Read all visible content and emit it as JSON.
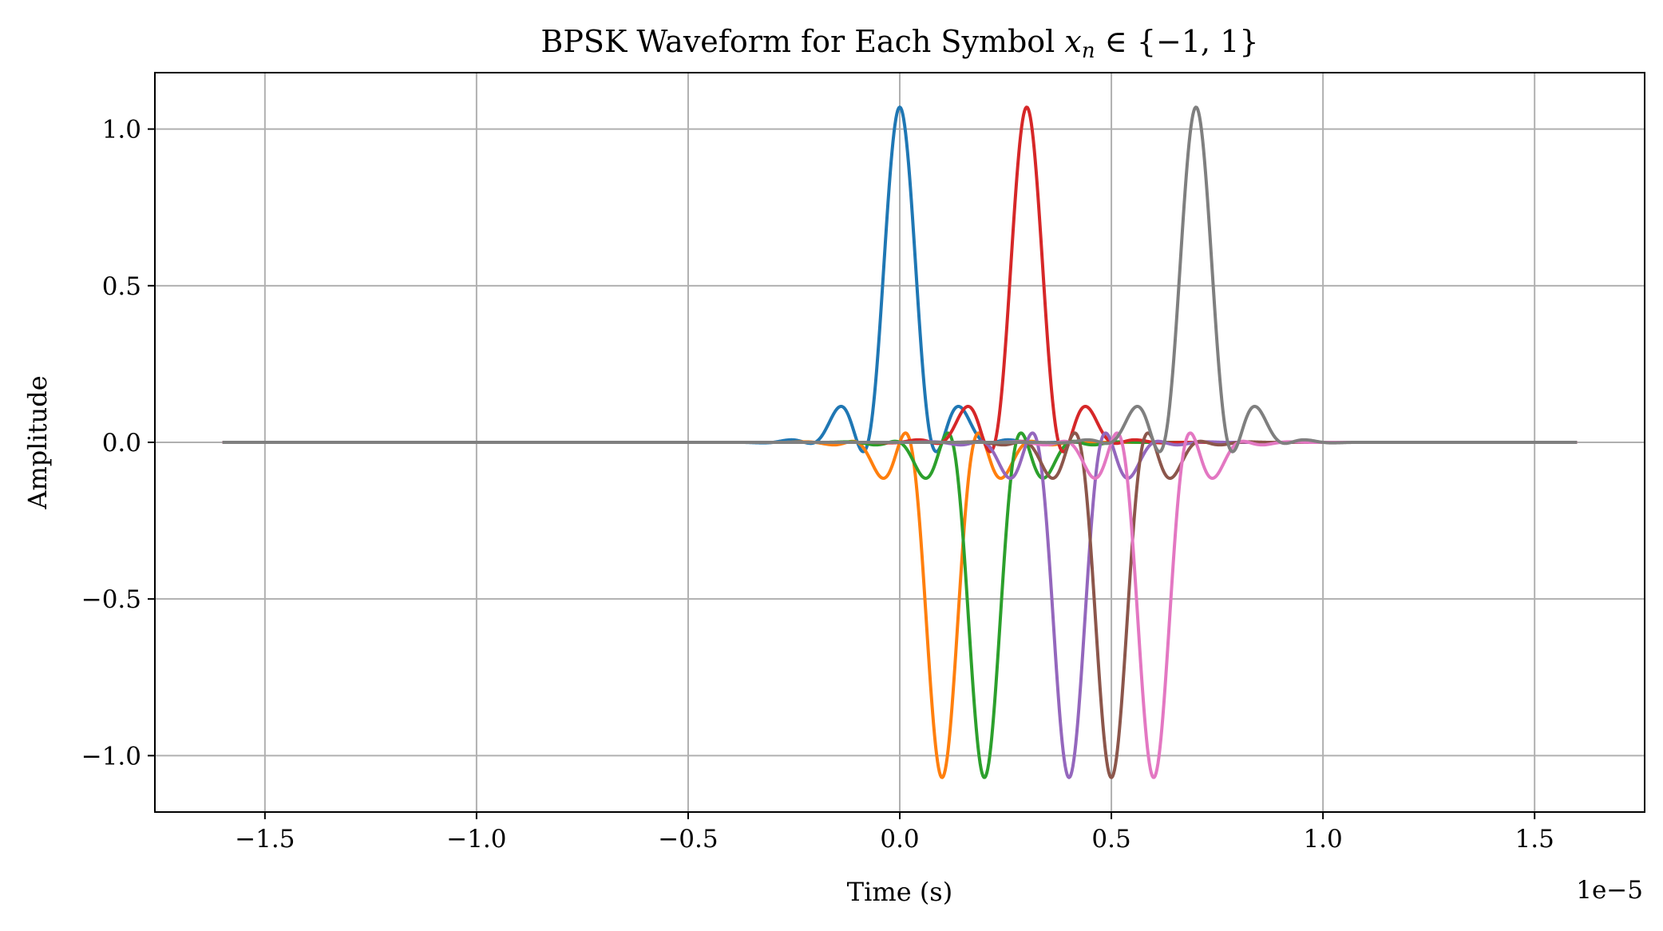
{
  "chart_data": {
    "type": "line",
    "title_parts": {
      "prefix": "BPSK Waveform for Each Symbol ",
      "var": "x",
      "sub": "n",
      "suffix": " ∈ {−1, 1}"
    },
    "xlabel": "Time (s)",
    "ylabel": "Amplitude",
    "x_offset_text": "1e−5",
    "x_unit_scale": 1e-05,
    "xlim": [
      -1.76,
      1.76
    ],
    "ylim": [
      -1.18,
      1.18
    ],
    "xticks": [
      -1.5,
      -1.0,
      -0.5,
      0.0,
      0.5,
      1.0,
      1.5
    ],
    "xtick_labels": [
      "−1.5",
      "−1.0",
      "−0.5",
      "0.0",
      "0.5",
      "1.0",
      "1.5"
    ],
    "yticks": [
      -1.0,
      -0.5,
      0.0,
      0.5,
      1.0
    ],
    "ytick_labels": [
      "−1.0",
      "−0.5",
      "0.0",
      "0.5",
      "1.0"
    ],
    "grid": true,
    "x_range": [
      -1.6,
      1.6
    ],
    "series": [
      {
        "symbol": 1,
        "center": 0.0,
        "color": "#1f77b4"
      },
      {
        "symbol": -1,
        "center": 0.1,
        "color": "#ff7f0e"
      },
      {
        "symbol": -1,
        "center": 0.2,
        "color": "#2ca02c"
      },
      {
        "symbol": 1,
        "center": 0.3,
        "color": "#d62728"
      },
      {
        "symbol": -1,
        "center": 0.4,
        "color": "#9467bd"
      },
      {
        "symbol": -1,
        "center": 0.5,
        "color": "#8c564b"
      },
      {
        "symbol": -1,
        "center": 0.6,
        "color": "#e377c2"
      },
      {
        "symbol": 1,
        "center": 0.7,
        "color": "#7f7f7f"
      }
    ],
    "pulse": {
      "peak": 1.07,
      "symbol_period": 0.1,
      "carrier_period": 0.3,
      "gaussian_sigma": 0.12
    }
  }
}
